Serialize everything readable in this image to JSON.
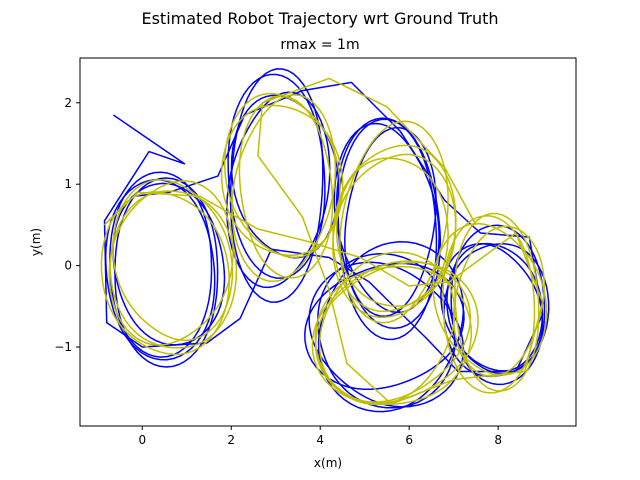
{
  "chart_data": {
    "type": "line",
    "title": "Estimated Robot Trajectory wrt Ground Truth",
    "subtitle": "rmax = 1m",
    "xlabel": "x(m)",
    "ylabel": "y(m)",
    "xlim": [
      -1.4,
      9.75
    ],
    "ylim": [
      -1.97,
      2.55
    ],
    "xticks": [
      0,
      2,
      4,
      6,
      8
    ],
    "yticks": [
      -1,
      0,
      1,
      2
    ],
    "xtick_labels": [
      "0",
      "2",
      "4",
      "6",
      "8"
    ],
    "ytick_labels": [
      "−1",
      "0",
      "1",
      "2"
    ],
    "grid": false,
    "series": [
      {
        "color": "#0000ff",
        "loops": [
          {
            "cx": 0.5,
            "cy": 0.0,
            "rx": 1.4,
            "ry": 1.0,
            "n": 4
          },
          {
            "cx": 3.1,
            "cy": 1.0,
            "rx": 1.2,
            "ry": 1.2,
            "n": 4
          },
          {
            "cx": 5.6,
            "cy": 0.5,
            "rx": 1.2,
            "ry": 1.2,
            "n": 4
          },
          {
            "cx": 5.5,
            "cy": -0.8,
            "rx": 1.6,
            "ry": 0.9,
            "n": 4
          },
          {
            "cx": 7.9,
            "cy": -0.5,
            "rx": 1.1,
            "ry": 0.9,
            "n": 4
          }
        ],
        "path": [
          [
            -0.65,
            1.85
          ],
          [
            0.95,
            1.25
          ],
          [
            0.15,
            1.4
          ],
          [
            -0.85,
            0.55
          ],
          [
            -0.8,
            -0.7
          ],
          [
            0.0,
            -1.0
          ],
          [
            1.45,
            -0.95
          ],
          [
            2.2,
            -0.65
          ],
          [
            2.9,
            0.2
          ],
          [
            4.2,
            0.1
          ],
          [
            5.1,
            -0.2
          ],
          [
            6.4,
            -0.9
          ],
          [
            7.1,
            -1.3
          ],
          [
            8.4,
            -1.3
          ],
          [
            9.0,
            -0.6
          ],
          [
            8.7,
            0.35
          ],
          [
            7.6,
            0.4
          ],
          [
            6.8,
            0.8
          ],
          [
            5.8,
            1.65
          ],
          [
            4.7,
            2.25
          ],
          [
            3.6,
            2.15
          ],
          [
            2.3,
            1.85
          ],
          [
            1.7,
            1.1
          ],
          [
            0.6,
            0.9
          ],
          [
            -0.2,
            0.85
          ],
          [
            -0.85,
            0.5
          ]
        ]
      },
      {
        "color": "#bfbf00",
        "loops": [
          {
            "cx": 0.6,
            "cy": 0.0,
            "rx": 1.4,
            "ry": 1.05,
            "n": 4
          },
          {
            "cx": 3.2,
            "cy": 1.05,
            "rx": 1.25,
            "ry": 1.15,
            "n": 4
          },
          {
            "cx": 5.7,
            "cy": 0.45,
            "rx": 1.25,
            "ry": 1.15,
            "n": 4
          },
          {
            "cx": 5.6,
            "cy": -0.85,
            "rx": 1.6,
            "ry": 0.9,
            "n": 4
          },
          {
            "cx": 7.9,
            "cy": -0.45,
            "rx": 1.1,
            "ry": 0.95,
            "n": 4
          }
        ],
        "path": [
          [
            -0.85,
            0.5
          ],
          [
            -0.1,
            0.9
          ],
          [
            1.3,
            0.85
          ],
          [
            2.6,
            0.45
          ],
          [
            3.7,
            0.3
          ],
          [
            4.9,
            0.1
          ],
          [
            6.0,
            -0.25
          ],
          [
            6.9,
            -0.2
          ],
          [
            8.4,
            0.4
          ],
          [
            9.0,
            -0.45
          ],
          [
            8.6,
            -1.3
          ],
          [
            7.0,
            -1.4
          ],
          [
            5.6,
            -1.7
          ],
          [
            4.6,
            -1.2
          ],
          [
            4.2,
            -0.3
          ],
          [
            3.6,
            0.6
          ],
          [
            2.6,
            1.35
          ],
          [
            2.7,
            2.0
          ],
          [
            4.2,
            2.3
          ],
          [
            5.5,
            1.95
          ],
          [
            6.8,
            1.2
          ],
          [
            7.5,
            0.5
          ]
        ]
      }
    ]
  }
}
